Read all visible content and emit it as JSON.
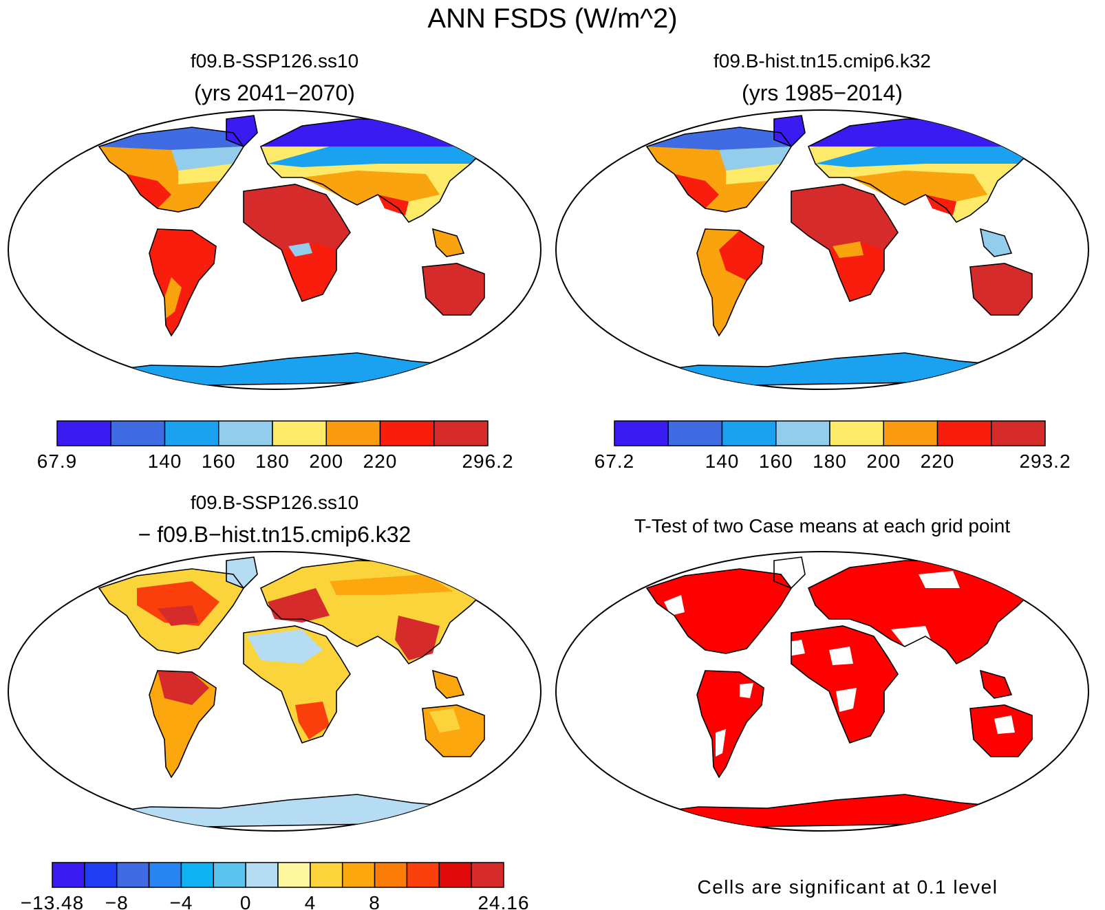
{
  "figure": {
    "title": "ANN FSDS (W/m^2)"
  },
  "panels": [
    {
      "id": "future",
      "title_line1": "f09.B-SSP126.ss10",
      "title_line2": "(yrs 2041−2070)",
      "colorbar": {
        "colors": [
          "#3a1cf2",
          "#3f6be3",
          "#1aa2f0",
          "#94cdec",
          "#fdea68",
          "#fb9c10",
          "#f81d0d",
          "#d62b2b"
        ],
        "labels": [
          "67.9",
          "",
          "140",
          "160",
          "180",
          "200",
          "220",
          "",
          "296.2"
        ]
      }
    },
    {
      "id": "hist",
      "title_line1": "f09.B-hist.tn15.cmip6.k32",
      "title_line2": "(yrs 1985−2014)",
      "colorbar": {
        "colors": [
          "#3a1cf2",
          "#3f6be3",
          "#1aa2f0",
          "#94cdec",
          "#fdea68",
          "#fb9c10",
          "#f81d0d",
          "#d62b2b"
        ],
        "labels": [
          "67.2",
          "",
          "140",
          "160",
          "180",
          "200",
          "220",
          "",
          "293.2"
        ]
      }
    },
    {
      "id": "diff",
      "title_line1": "f09.B-SSP126.ss10",
      "title_line2": "− f09.B−hist.tn15.cmip6.k32",
      "colorbar": {
        "colors": [
          "#3a1cf2",
          "#1f3ef1",
          "#3f6be3",
          "#2784f0",
          "#0fb3f3",
          "#5cc3ef",
          "#b5dcf3",
          "#fdf8a0",
          "#fbd43c",
          "#fca70e",
          "#fb7d07",
          "#f83f0c",
          "#e0090a",
          "#d62b2b"
        ],
        "labels": [
          "−13.48",
          "",
          "−8",
          "",
          "−4",
          "",
          "0",
          "",
          "4",
          "",
          "8",
          "",
          "",
          "",
          "24.16"
        ]
      }
    },
    {
      "id": "ttest",
      "title_line1": "T-Test of two Case means at each grid point",
      "footnote": "Cells are significant at 0.1 level",
      "significant_color": "#ff0000"
    }
  ]
}
